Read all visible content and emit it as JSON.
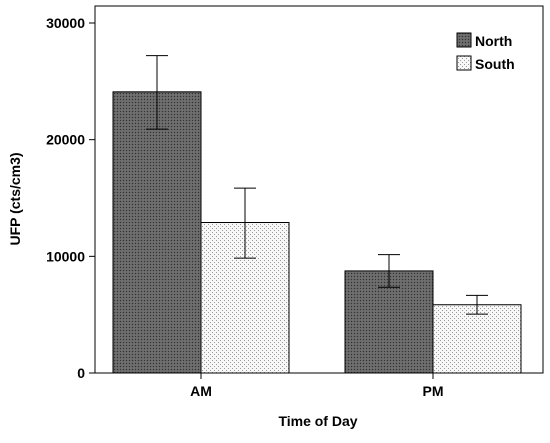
{
  "chart_data": {
    "type": "bar",
    "title": "",
    "xlabel": "Time of Day",
    "ylabel": "UFP (cts/cm3)",
    "categories": [
      "AM",
      "PM"
    ],
    "ylim": [
      0,
      30000
    ],
    "yticks": [
      0,
      10000,
      20000,
      30000
    ],
    "grid": false,
    "legend_position": "top-right",
    "error_bars": true,
    "series": [
      {
        "name": "North",
        "values": [
          24100,
          8750
        ],
        "error_low": [
          20900,
          7350
        ],
        "error_high": [
          27200,
          10150
        ],
        "color": "#595959",
        "pattern": "dense-dots"
      },
      {
        "name": "South",
        "values": [
          12900,
          5850
        ],
        "error_low": [
          9850,
          5050
        ],
        "error_high": [
          15850,
          6650
        ],
        "color": "#f5f5f5",
        "pattern": "sparse-dots"
      }
    ]
  }
}
